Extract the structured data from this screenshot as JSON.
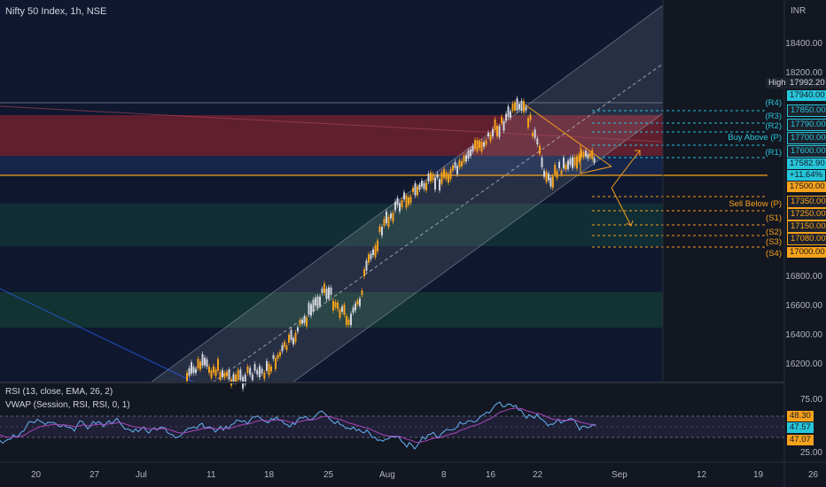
{
  "header": {
    "symbol": "Nifty 50 Index, 1h, NSE",
    "currency": "INR",
    "rsi_title": "RSI (13, close, EMA, 26, 2)",
    "vwap_title": "VWAP (Session, RSI, RSI, 0, 1)"
  },
  "price_axis": {
    "ticks": [
      "18400.00",
      "18200.00",
      "16800.00",
      "16600.00",
      "16400.00",
      "16200.00"
    ]
  },
  "rsi_axis": {
    "ticks": [
      "75.00",
      "25.00"
    ]
  },
  "x_axis": {
    "ticks": [
      "20",
      "27",
      "Jul",
      "11",
      "18",
      "25",
      "Aug",
      "8",
      "16",
      "22",
      "Sep",
      "12",
      "19",
      "26"
    ]
  },
  "price_tags": {
    "high_label": "High",
    "high_value": "17992.20",
    "r4": "17940.00",
    "r3": "17850.00",
    "r2": "17790.00",
    "buy_above": "17700.00",
    "r1": "17600.00",
    "last": "17582.90",
    "last_change": "+11.64%",
    "pivot": "17500.00",
    "sell_below": "17350.00",
    "s1": "17250.00",
    "s2": "17150.00",
    "s3": "17080.00",
    "s4": "17000.00"
  },
  "levels": {
    "r4": "(R4)",
    "r3": "(R3)",
    "r2": "(R2)",
    "buy": "Buy Above (P)",
    "r1": "(R1)",
    "sell": "Sell Below (P)",
    "s1": "(S1)",
    "s2": "(S2)",
    "s3": "(S3)",
    "s4": "(S4)"
  },
  "rsi_tags": {
    "t1": "48.30",
    "t2": "47.57",
    "t3": "47.07"
  },
  "colors": {
    "bg": "#131722",
    "up": "#d1d4dc",
    "down": "#f7a21b",
    "line": "#f7a21b",
    "cyan": "#26c6da",
    "orange": "#f57f17",
    "rsi": "#64b5f6",
    "vwap": "#ab47bc"
  }
}
